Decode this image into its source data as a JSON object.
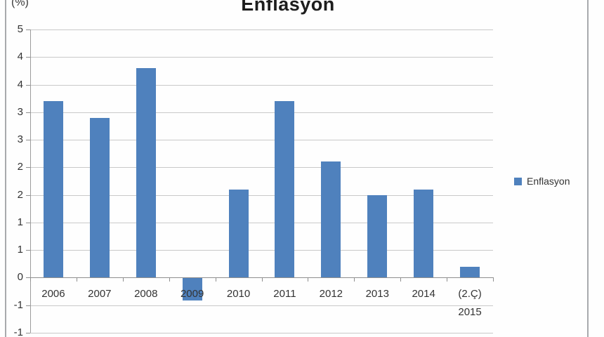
{
  "header": {
    "title": "Enflasyon",
    "y_unit_label": "(%)"
  },
  "legend": {
    "items": [
      {
        "label": "Enflasyon",
        "color": "#4f81bd"
      }
    ]
  },
  "chart_data": {
    "type": "bar",
    "title": "Enflasyon",
    "series_name": "Enflasyon",
    "ylabel": "(%)",
    "bar_color": "#4f81bd",
    "grid": true,
    "legend_position": "right",
    "categories": [
      {
        "lines": [
          "2006"
        ]
      },
      {
        "lines": [
          "2007"
        ]
      },
      {
        "lines": [
          "2008"
        ]
      },
      {
        "lines": [
          "2009"
        ]
      },
      {
        "lines": [
          "2010"
        ]
      },
      {
        "lines": [
          "2011"
        ]
      },
      {
        "lines": [
          "2012"
        ]
      },
      {
        "lines": [
          "2013"
        ]
      },
      {
        "lines": [
          "2014"
        ]
      },
      {
        "lines": [
          "(2.Ç)",
          "2015"
        ]
      }
    ],
    "values": [
      3.2,
      2.9,
      3.8,
      -0.4,
      1.6,
      3.2,
      2.1,
      1.5,
      1.6,
      0.2
    ],
    "ylim": [
      -1,
      4.5
    ],
    "y_axis": {
      "min": -1,
      "max": 4.5,
      "step": 0.5,
      "ticks": [
        {
          "value": 4.5,
          "label": "5"
        },
        {
          "value": 4.0,
          "label": "4"
        },
        {
          "value": 3.5,
          "label": "4"
        },
        {
          "value": 3.0,
          "label": "3"
        },
        {
          "value": 2.5,
          "label": "3"
        },
        {
          "value": 2.0,
          "label": "2"
        },
        {
          "value": 1.5,
          "label": "2"
        },
        {
          "value": 1.0,
          "label": "1"
        },
        {
          "value": 0.5,
          "label": "1"
        },
        {
          "value": 0.0,
          "label": "0"
        },
        {
          "value": -0.5,
          "label": "-1"
        },
        {
          "value": -1.0,
          "label": "-1"
        }
      ]
    }
  }
}
